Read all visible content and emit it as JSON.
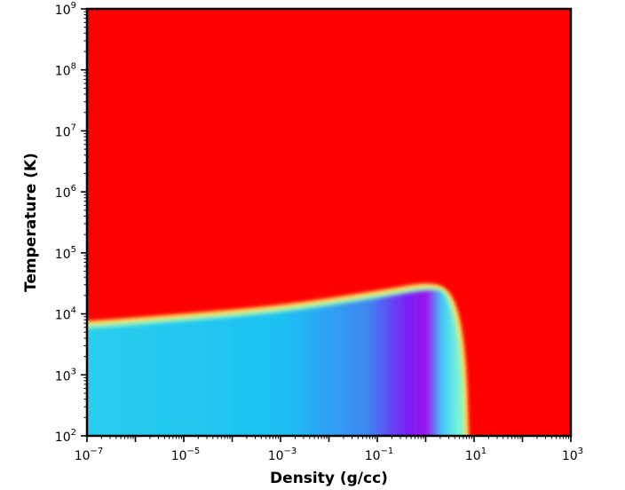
{
  "chart_data": {
    "type": "heatmap",
    "title": "",
    "xlabel": "Density (g/cc)",
    "ylabel": "Temperature (K)",
    "xscale": "log",
    "yscale": "log",
    "xlim": [
      1e-07,
      1000.0
    ],
    "ylim": [
      100.0,
      1000000000.0
    ],
    "x_ticks": [
      {
        "base": "10",
        "exp": "−7",
        "value": 1e-07
      },
      {
        "base": "10",
        "exp": "−5",
        "value": 1e-05
      },
      {
        "base": "10",
        "exp": "−3",
        "value": 0.001
      },
      {
        "base": "10",
        "exp": "−1",
        "value": 0.1
      },
      {
        "base": "10",
        "exp": "1",
        "value": 10.0
      },
      {
        "base": "10",
        "exp": "3",
        "value": 1000.0
      }
    ],
    "y_ticks": [
      {
        "base": "10",
        "exp": "2",
        "value": 100.0
      },
      {
        "base": "10",
        "exp": "3",
        "value": 1000.0
      },
      {
        "base": "10",
        "exp": "4",
        "value": 10000.0
      },
      {
        "base": "10",
        "exp": "5",
        "value": 100000.0
      },
      {
        "base": "10",
        "exp": "6",
        "value": 1000000.0
      },
      {
        "base": "10",
        "exp": "7",
        "value": 10000000.0
      },
      {
        "base": "10",
        "exp": "8",
        "value": 100000000.0
      },
      {
        "base": "10",
        "exp": "9",
        "value": 1000000000.0
      }
    ],
    "colormap": "rainbow",
    "background_color": "#ff0000",
    "boundary": [
      {
        "density": 1e-07,
        "temperature": 6000
      },
      {
        "density": 1e-05,
        "temperature": 8000
      },
      {
        "density": 0.001,
        "temperature": 11000
      },
      {
        "density": 0.1,
        "temperature": 19000
      },
      {
        "density": 1.5,
        "temperature": 28000
      },
      {
        "density": 3,
        "temperature": 20000
      },
      {
        "density": 5,
        "temperature": 3000
      },
      {
        "density": 6,
        "temperature": 100
      }
    ],
    "grid": false,
    "legend": "none"
  }
}
